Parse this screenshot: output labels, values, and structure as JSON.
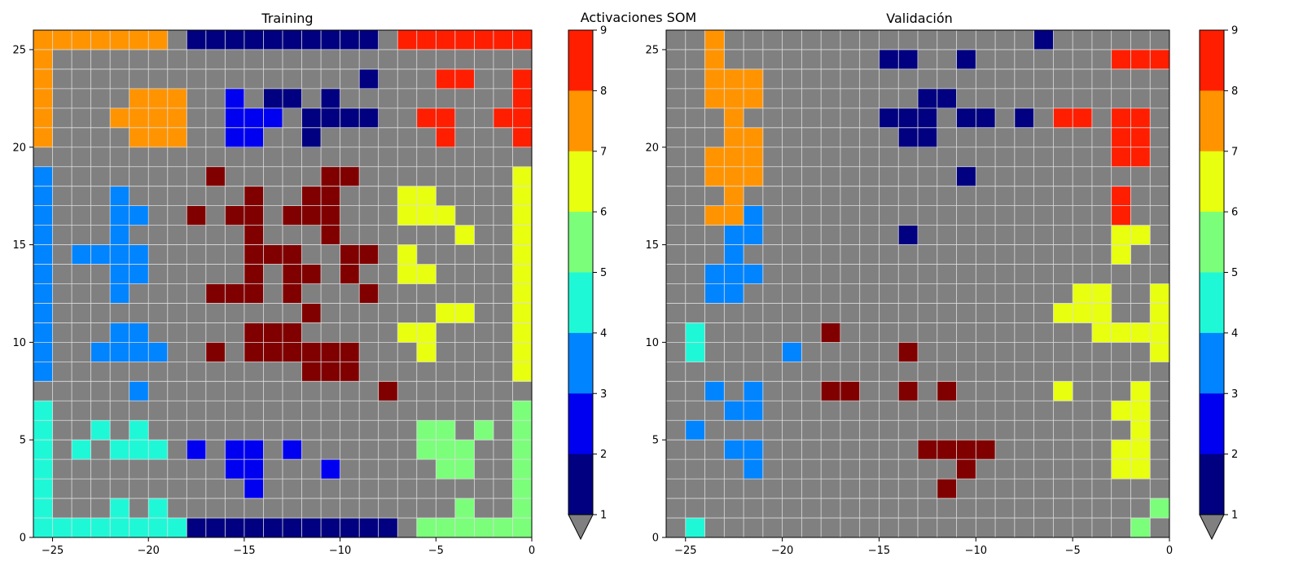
{
  "figure": {
    "suptitle": "Activaciones SOM"
  },
  "chart_data": [
    {
      "type": "heatmap",
      "title": "Training",
      "xlim": [
        -26,
        0
      ],
      "ylim": [
        0,
        26
      ],
      "xticks": [
        -25,
        -20,
        -15,
        -10,
        -5,
        0
      ],
      "yticks": [
        0,
        5,
        10,
        15,
        20,
        25
      ],
      "xtick_labels": [
        "−25",
        "−20",
        "−15",
        "−10",
        "−5",
        "0"
      ],
      "ytick_labels": [
        "0",
        "5",
        "10",
        "15",
        "20",
        "25"
      ],
      "grid": true,
      "empty_color": "#808080",
      "rows_top_to_bottom": [
        "77777770111111111108888888",
        "70000000000000000000000000",
        "70000000000000000100088008",
        "70000777002011010000000008",
        "70007777002220111100880088",
        "70000777002200100000080008",
        "00000000000000000000000000",
        "30000000090000099000000006",
        "30003000000900990006600006",
        "30003300909909990006660006",
        "30003000000900090000006006",
        "30333300000999009906000006",
        "30003300000909909006600006",
        "30003000099909000900000006",
        "30000000000000900000066006",
        "30003300000999000006600006",
        "30033330090999999000600006",
        "30000000000000999000000006",
        "00000300000000000090000000",
        "40000000000000000000000005",
        "40040400000000000000550505",
        "40404440202202000000555005",
        "40000000002200020000055005",
        "40000000000200000000000005",
        "40004040000000000000005005",
        "44444444111111111110555555"
      ]
    },
    {
      "type": "heatmap",
      "title": "Validación",
      "xlim": [
        -26,
        0
      ],
      "ylim": [
        0,
        26
      ],
      "xticks": [
        -25,
        -20,
        -15,
        -10,
        -5,
        0
      ],
      "yticks": [
        0,
        5,
        10,
        15,
        20,
        25
      ],
      "xtick_labels": [
        "−25",
        "−20",
        "−15",
        "−10",
        "−5",
        "0"
      ],
      "ytick_labels": [
        "0",
        "5",
        "10",
        "15",
        "20",
        "25"
      ],
      "grid": true,
      "empty_color": "#808080",
      "rows_top_to_bottom": [
        "00700000000000000001000000",
        "00700000000110010000000888",
        "00777000000000000000000000",
        "00777000000001100000000000",
        "00070000000111011010880880",
        "00077000000011000000000880",
        "00777000000000000000000880",
        "00777000000000010000000000",
        "00070000000000000000000800",
        "00773000000000000000000800",
        "00033000000010000000000660",
        "00030000000000000000000600",
        "00333000000000000000000000",
        "00330000000000000000066006",
        "00000000000000000000666006",
        "04000000900000000000006666",
        "04000030000090000000000006",
        "00000000000000000000000000",
        "00303000990090900000600060",
        "00033000000000000000000660",
        "03000000000000000000000060",
        "00033000000009999000000660",
        "00003000000000090000000660",
        "00000000000000900000000000",
        "00000000000000000000000005",
        "04000000000000000000000050"
      ]
    }
  ],
  "colorbars": [
    {
      "ticks": [
        "1",
        "2",
        "3",
        "4",
        "5",
        "6",
        "7",
        "8",
        "9"
      ]
    },
    {
      "ticks": [
        "1",
        "2",
        "3",
        "4",
        "5",
        "6",
        "7",
        "8",
        "9"
      ]
    }
  ],
  "colormap": {
    "empty": "#808080",
    "1": "#000080",
    "2": "#0000f1",
    "3": "#0084ff",
    "4": "#1ff8d7",
    "5": "#7bff7b",
    "6": "#e8ff10",
    "7": "#ff9400",
    "8": "#ff1e00",
    "9": "#800000",
    "grid": "#dddddd"
  }
}
